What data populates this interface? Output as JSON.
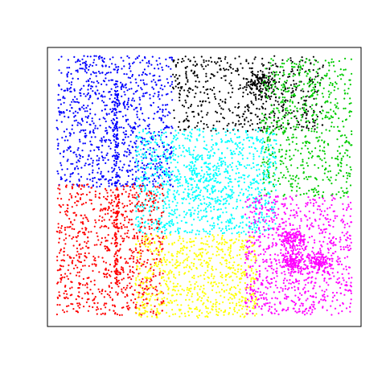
{
  "chart_data": {
    "type": "scatter",
    "title": "",
    "xlabel": "",
    "ylabel": "",
    "axes_visible": false,
    "frame": "box",
    "grid": false,
    "legend": "none",
    "xlim": [
      0,
      1
    ],
    "ylim": [
      0,
      1
    ],
    "series": [
      {
        "color": "#0000ff",
        "region": "top-left",
        "x_range": [
          0.03,
          0.4
        ],
        "y_range": [
          0.5,
          0.97
        ],
        "points": 950,
        "dense_lines": [
          {
            "x": 0.22,
            "y_range": [
              0.51,
              0.88
            ]
          }
        ]
      },
      {
        "color": "#000000",
        "region": "top-center",
        "x_range": [
          0.4,
          0.88
        ],
        "y_range": [
          0.7,
          0.97
        ],
        "points": 550,
        "dense_clusters": [
          {
            "cx": 0.68,
            "cy": 0.87,
            "spread": 0.025
          }
        ]
      },
      {
        "color": "#00cc00",
        "region": "top-right",
        "x_range": [
          0.68,
          0.97
        ],
        "y_range": [
          0.46,
          0.96
        ],
        "points": 650
      },
      {
        "color": "#00ffff",
        "region": "center",
        "x_range": [
          0.28,
          0.73
        ],
        "y_range": [
          0.33,
          0.71
        ],
        "points": 1050,
        "dense_clusters": [
          {
            "cx": 0.5,
            "cy": 0.52,
            "spread": 0.05
          }
        ]
      },
      {
        "color": "#ff0000",
        "region": "bottom-left",
        "x_range": [
          0.03,
          0.37
        ],
        "y_range": [
          0.04,
          0.51
        ],
        "points": 850,
        "dense_lines": [
          {
            "x": 0.22,
            "y_range": [
              0.14,
              0.5
            ]
          }
        ]
      },
      {
        "color": "#ffff00",
        "region": "bottom-center",
        "x_range": [
          0.28,
          0.67
        ],
        "y_range": [
          0.03,
          0.33
        ],
        "points": 750
      },
      {
        "color": "#ff00ff",
        "region": "bottom-right",
        "x_range": [
          0.63,
          0.97
        ],
        "y_range": [
          0.04,
          0.47
        ],
        "points": 800,
        "dense_clusters": [
          {
            "cx": 0.78,
            "cy": 0.31,
            "spread": 0.022
          },
          {
            "cx": 0.78,
            "cy": 0.23,
            "spread": 0.02
          },
          {
            "cx": 0.87,
            "cy": 0.23,
            "spread": 0.02
          }
        ]
      }
    ]
  }
}
